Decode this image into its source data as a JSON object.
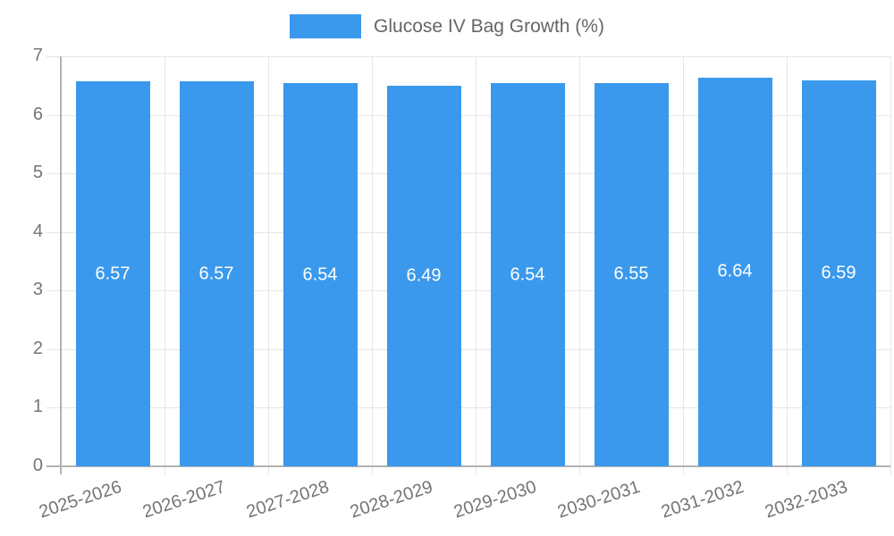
{
  "chart_data": {
    "type": "bar",
    "legend_label": "Glucose IV Bag Growth (%)",
    "legend_position": "top",
    "categories": [
      "2025-2026",
      "2026-2027",
      "2027-2028",
      "2028-2029",
      "2029-2030",
      "2030-2031",
      "2031-2032",
      "2032-2033"
    ],
    "series": [
      {
        "name": "Glucose IV Bag Growth (%)",
        "values": [
          6.57,
          6.57,
          6.54,
          6.49,
          6.54,
          6.55,
          6.64,
          6.59
        ]
      }
    ],
    "value_label_decimals": 2,
    "xlabel": "",
    "ylabel": "",
    "ylim": [
      0,
      7
    ],
    "yticks": [
      0,
      1,
      2,
      3,
      4,
      5,
      6,
      7
    ],
    "grid": true,
    "x_tick_rotation_deg": -18,
    "colors": {
      "bar": "#3a99ec",
      "grid": "#e6e6e6",
      "axis": "#b3b3b3",
      "tick_text": "#757575",
      "legend_text": "#666666",
      "bar_label_text": "#ffffff",
      "background": "#ffffff"
    }
  }
}
